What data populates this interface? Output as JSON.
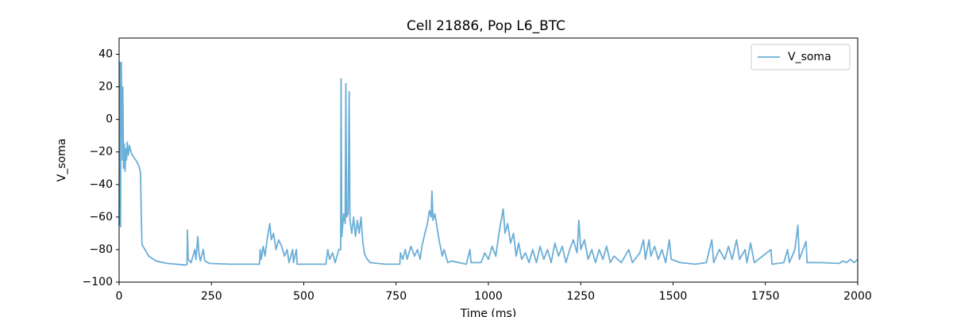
{
  "chart_data": {
    "type": "line",
    "title": "Cell 21886, Pop L6_BTC",
    "xlabel": "Time (ms)",
    "ylabel": "V_soma",
    "x": [
      0,
      1,
      2,
      3,
      4,
      5,
      6,
      7,
      8,
      9,
      10,
      12,
      14,
      16,
      18,
      20,
      22,
      25,
      28,
      32,
      36,
      42,
      48,
      54,
      58,
      60,
      62,
      70,
      80,
      100,
      130,
      180,
      184,
      185,
      187,
      195,
      205,
      208,
      213,
      216,
      220,
      228,
      232,
      245,
      300,
      380,
      382,
      385,
      390,
      395,
      400,
      405,
      408,
      412,
      418,
      425,
      432,
      440,
      448,
      455,
      460,
      470,
      472,
      480,
      482,
      520,
      560,
      565,
      570,
      578,
      585,
      595,
      600,
      601,
      603,
      608,
      612,
      614,
      616,
      620,
      623,
      625,
      630,
      635,
      640,
      645,
      650,
      655,
      660,
      665,
      672,
      680,
      720,
      760,
      762,
      768,
      775,
      780,
      790,
      800,
      808,
      815,
      820,
      828,
      835,
      840,
      845,
      847,
      850,
      855,
      862,
      868,
      875,
      880,
      890,
      900,
      940,
      950,
      953,
      980,
      990,
      1000,
      1010,
      1020,
      1030,
      1040,
      1045,
      1052,
      1060,
      1068,
      1075,
      1082,
      1090,
      1100,
      1110,
      1120,
      1130,
      1140,
      1150,
      1160,
      1170,
      1180,
      1190,
      1200,
      1210,
      1220,
      1230,
      1240,
      1245,
      1250,
      1260,
      1270,
      1280,
      1290,
      1300,
      1310,
      1320,
      1330,
      1340,
      1360,
      1380,
      1390,
      1410,
      1420,
      1425,
      1435,
      1440,
      1450,
      1460,
      1470,
      1480,
      1490,
      1495,
      1520,
      1560,
      1590,
      1605,
      1610,
      1625,
      1640,
      1650,
      1660,
      1672,
      1680,
      1695,
      1700,
      1710,
      1720,
      1765,
      1768,
      1800,
      1810,
      1815,
      1830,
      1838,
      1842,
      1860,
      1863,
      1900,
      1950,
      1960,
      1970,
      1980,
      1990,
      2000
    ],
    "series": [
      {
        "name": "V_soma",
        "color": "#6baed6",
        "values": [
          -65,
          -20,
          35,
          -60,
          -66,
          30,
          35,
          -10,
          20,
          -25,
          20,
          -30,
          -15,
          -32,
          -18,
          -25,
          -14,
          -22,
          -16,
          -20,
          -22,
          -24,
          -26,
          -29,
          -33,
          -60,
          -77,
          -80,
          -84,
          -87,
          -88.5,
          -89.5,
          -89,
          -68,
          -86,
          -88,
          -80,
          -86,
          -72,
          -82,
          -87,
          -80,
          -87,
          -88.5,
          -89,
          -89,
          -80,
          -86,
          -78,
          -84,
          -75,
          -68,
          -64,
          -74,
          -70,
          -80,
          -74,
          -78,
          -84,
          -80,
          -88,
          -80,
          -88,
          -80,
          -89,
          -89,
          -89,
          -80,
          -86,
          -82,
          -88,
          -80,
          -80,
          25,
          -72,
          -58,
          -64,
          22,
          -60,
          -58,
          17,
          -62,
          -70,
          -60,
          -72,
          -62,
          -70,
          -60,
          -76,
          -83,
          -86,
          -88,
          -89,
          -89,
          -82,
          -86,
          -80,
          -86,
          -78,
          -84,
          -80,
          -86,
          -78,
          -70,
          -64,
          -56,
          -60,
          -44,
          -62,
          -58,
          -68,
          -76,
          -84,
          -80,
          -88,
          -87,
          -89,
          -80,
          -88,
          -88,
          -82,
          -86,
          -78,
          -84,
          -68,
          -55,
          -70,
          -64,
          -76,
          -70,
          -84,
          -76,
          -86,
          -82,
          -88,
          -80,
          -88,
          -78,
          -86,
          -80,
          -88,
          -76,
          -84,
          -78,
          -88,
          -80,
          -74,
          -82,
          -62,
          -80,
          -74,
          -86,
          -80,
          -88,
          -80,
          -86,
          -78,
          -88,
          -84,
          -88,
          -80,
          -88,
          -82,
          -74,
          -86,
          -74,
          -84,
          -78,
          -86,
          -80,
          -88,
          -74,
          -86,
          -88,
          -89,
          -88,
          -74,
          -88,
          -80,
          -86,
          -78,
          -86,
          -74,
          -86,
          -80,
          -88,
          -76,
          -88,
          -80,
          -89,
          -88,
          -80,
          -88,
          -80,
          -65,
          -86,
          -75,
          -88,
          -88,
          -88.5,
          -87,
          -88,
          -86,
          -88,
          -86
        ]
      }
    ],
    "xlim": [
      0,
      2000
    ],
    "ylim": [
      -100,
      50
    ],
    "xticks": [
      0,
      250,
      500,
      750,
      1000,
      1250,
      1500,
      1750,
      2000
    ],
    "yticks": [
      {
        "value": -100,
        "label": "−100"
      },
      {
        "value": -80,
        "label": "−80"
      },
      {
        "value": -60,
        "label": "−60"
      },
      {
        "value": -40,
        "label": "−40"
      },
      {
        "value": -20,
        "label": "−20"
      },
      0,
      20,
      40
    ],
    "legend": "upper right"
  }
}
